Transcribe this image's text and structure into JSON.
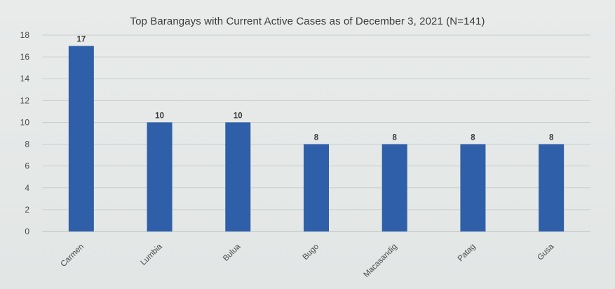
{
  "chart_data": {
    "type": "bar",
    "title": "Top Barangays with Current Active Cases as of December 3, 2021 (N=141)",
    "xlabel": "",
    "ylabel": "",
    "categories": [
      "Carmen",
      "Lumbia",
      "Bulua",
      "Bugo",
      "Macasandig",
      "Patag",
      "Gusa"
    ],
    "values": [
      17,
      10,
      10,
      8,
      8,
      8,
      8
    ],
    "data_labels": [
      "17",
      "10",
      "10",
      "8",
      "8",
      "8",
      "8"
    ],
    "ylim": [
      0,
      18
    ],
    "yticks": [
      "0",
      "2",
      "4",
      "6",
      "8",
      "10",
      "12",
      "14",
      "16",
      "18"
    ],
    "grid": true,
    "legend": "none",
    "bar_color": "#2e5fa8",
    "grid_color": "#c9cfce",
    "category_label_rotation": "-45"
  }
}
